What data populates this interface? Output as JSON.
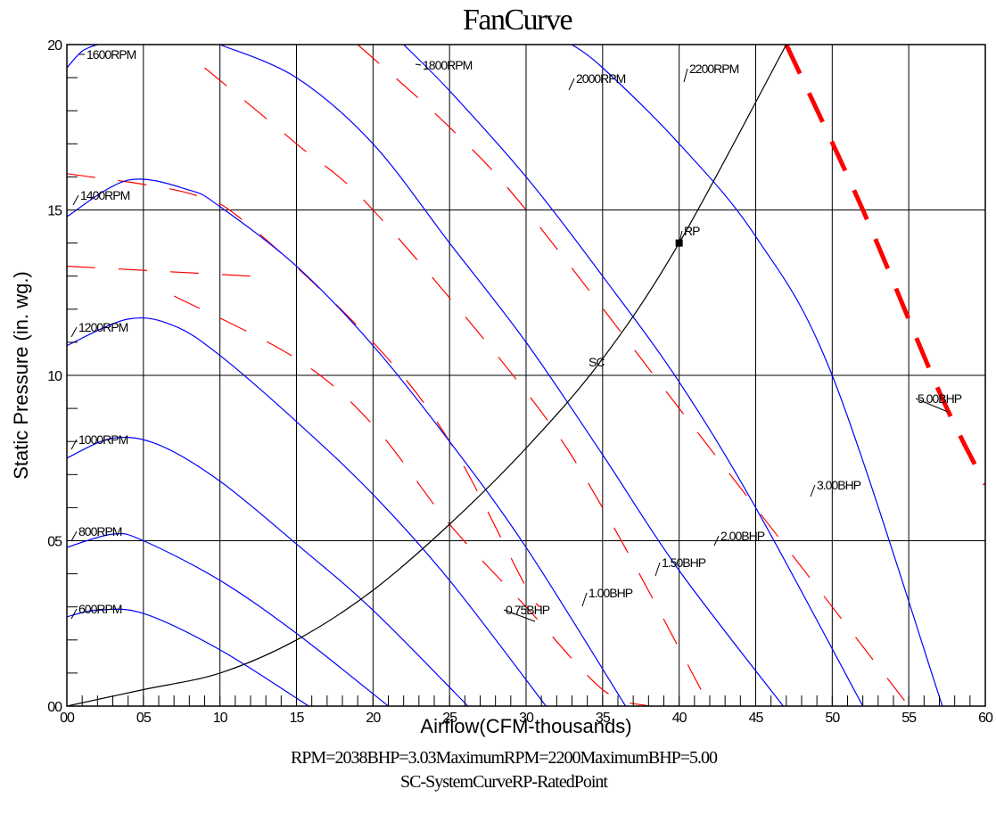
{
  "chart_data": {
    "type": "line",
    "title": "FanCurve",
    "xlabel": "Airflow(CFM-thousands)",
    "ylabel": "Static Pressure (in. wg.)",
    "xlim": [
      0,
      60
    ],
    "ylim": [
      0,
      2.0
    ],
    "x_ticks": [
      0,
      5,
      10,
      15,
      20,
      25,
      30,
      35,
      40,
      45,
      50,
      55,
      60
    ],
    "x_tick_labels": [
      "00",
      "05",
      "10",
      "15",
      "20",
      "25",
      "30",
      "35",
      "40",
      "45",
      "50",
      "55",
      "60"
    ],
    "y_ticks": [
      0,
      0.5,
      1.0,
      1.5,
      2.0
    ],
    "y_tick_labels": [
      "00",
      "05",
      "10",
      "15",
      "20"
    ],
    "grid": true,
    "rpm_curves": [
      {
        "label": "600RPM",
        "x": [
          0,
          2,
          5,
          10,
          15.8
        ],
        "y": [
          0.27,
          0.29,
          0.28,
          0.17,
          0.0
        ]
      },
      {
        "label": "800RPM",
        "x": [
          0,
          3,
          5,
          10,
          15,
          21
        ],
        "y": [
          0.48,
          0.52,
          0.5,
          0.38,
          0.22,
          0.0
        ]
      },
      {
        "label": "1000RPM",
        "x": [
          0,
          3,
          6,
          10,
          15,
          20,
          26.2
        ],
        "y": [
          0.75,
          0.81,
          0.79,
          0.68,
          0.49,
          0.29,
          0.0
        ]
      },
      {
        "label": "1200RPM",
        "x": [
          0,
          4,
          7,
          10,
          15,
          20,
          25,
          31.3
        ],
        "y": [
          1.09,
          1.17,
          1.15,
          1.06,
          0.86,
          0.64,
          0.38,
          0.0
        ]
      },
      {
        "label": "1400RPM",
        "x": [
          0,
          4,
          8,
          10,
          15,
          20,
          25,
          30,
          36.5
        ],
        "y": [
          1.48,
          1.59,
          1.56,
          1.51,
          1.33,
          1.09,
          0.8,
          0.48,
          0.0
        ]
      },
      {
        "label": "1600RPM",
        "x": [
          0,
          1,
          2
        ],
        "y": [
          1.93,
          1.98,
          2.0
        ]
      },
      {
        "label": "1800RPM",
        "x": [
          10,
          15,
          20,
          25,
          30,
          35,
          40,
          46.8
        ],
        "y": [
          2.0,
          1.9,
          1.7,
          1.4,
          1.1,
          0.76,
          0.41,
          0.0
        ]
      },
      {
        "label": "2000RPM",
        "x": [
          22,
          25,
          30,
          35,
          40,
          45,
          52
        ],
        "y": [
          2.0,
          1.86,
          1.6,
          1.3,
          0.98,
          0.6,
          0.0
        ]
      },
      {
        "label": "2200RPM",
        "x": [
          33,
          35,
          40,
          45,
          50,
          57.2
        ],
        "y": [
          2.0,
          1.93,
          1.7,
          1.42,
          1.0,
          0.0
        ]
      }
    ],
    "bhp_curves": [
      {
        "label": "0.75BHP",
        "x": [
          0,
          12
        ],
        "y": [
          1.33,
          1.3
        ]
      },
      {
        "label": "1.00BHP",
        "x": [
          0,
          8,
          12,
          20,
          25,
          30,
          31
        ],
        "y": [
          1.61,
          1.55,
          1.45,
          1.1,
          0.8,
          0.36,
          0.3
        ]
      },
      {
        "label": "1.50BHP",
        "x": [
          7,
          15,
          20,
          25,
          30,
          35,
          38
        ],
        "y": [
          1.24,
          1.05,
          0.85,
          0.55,
          0.3,
          0.05,
          0.0
        ]
      },
      {
        "label": "2.00BHP",
        "x": [
          9,
          15,
          20,
          30,
          35,
          42
        ],
        "y": [
          1.93,
          1.7,
          1.5,
          0.95,
          0.6,
          0.0
        ]
      },
      {
        "label": "3.00BHP",
        "x": [
          19,
          25,
          30,
          40,
          45,
          55
        ],
        "y": [
          2.0,
          1.75,
          1.5,
          0.9,
          0.6,
          0.0
        ]
      },
      {
        "label": "5.00BHP",
        "x": [
          47,
          52,
          57,
          60
        ],
        "y": [
          2.0,
          1.5,
          0.95,
          0.67
        ]
      }
    ],
    "system_curve": {
      "x": [
        0,
        5,
        10,
        15,
        20,
        25,
        30,
        35,
        40,
        47
      ],
      "y": [
        0.0,
        0.05,
        0.1,
        0.2,
        0.35,
        0.55,
        0.78,
        1.05,
        1.4,
        2.0
      ]
    },
    "rated_point": {
      "label": "RP",
      "x": 40,
      "y": 1.4
    },
    "sc_label": "SC",
    "footer_line1": "RPM=2038BHP=3.03MaximumRPM=2200MaximumBHP=5.00",
    "footer_line2": "SC-SystemCurveRP-RatedPoint",
    "colors": {
      "rpm": "#0000ff",
      "bhp": "#ff0000",
      "system": "#000000",
      "grid": "#000000"
    }
  }
}
